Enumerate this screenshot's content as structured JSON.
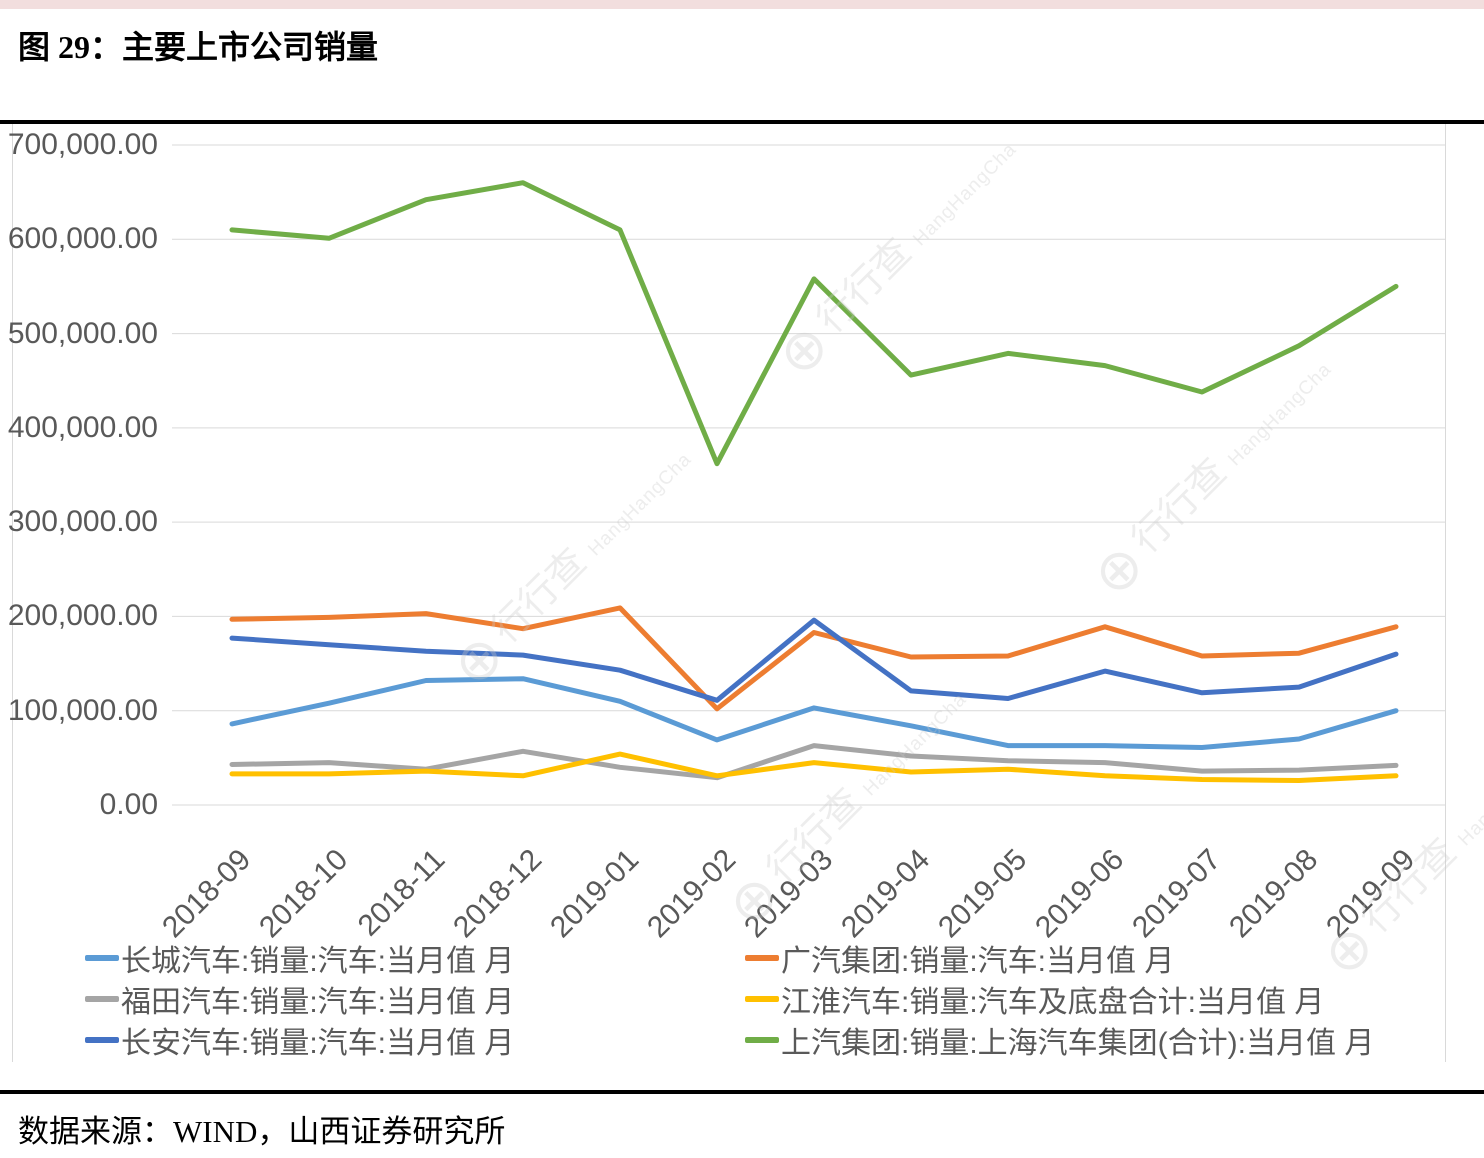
{
  "page": {
    "title": "图 29：主要上市公司销量",
    "source": "数据来源：WIND，山西证券研究所",
    "watermark": {
      "text": "行行查",
      "sub": "HangHangCha"
    }
  },
  "chart_data": {
    "type": "line",
    "title": "主要上市公司销量",
    "xlabel": "",
    "ylabel": "",
    "ylim": [
      0,
      700000
    ],
    "y_tick_step": 100000,
    "y_tick_labels": [
      "700,000.00",
      "600,000.00",
      "500,000.00",
      "400,000.00",
      "300,000.00",
      "200,000.00",
      "100,000.00",
      "0.00"
    ],
    "grid": true,
    "legend_position": "bottom",
    "categories": [
      "2018-09",
      "2018-10",
      "2018-11",
      "2018-12",
      "2019-01",
      "2019-02",
      "2019-03",
      "2019-04",
      "2019-05",
      "2019-06",
      "2019-07",
      "2019-08",
      "2019-09"
    ],
    "series": [
      {
        "name": "长城汽车:销量:汽车:当月值 月",
        "color": "#5B9BD5",
        "values": [
          86000,
          108000,
          132000,
          134000,
          110000,
          69000,
          103000,
          84000,
          63000,
          63000,
          61000,
          70000,
          100000
        ]
      },
      {
        "name": "广汽集团:销量:汽车:当月值 月",
        "color": "#ED7D31",
        "values": [
          197000,
          199000,
          203000,
          187000,
          209000,
          102000,
          183000,
          157000,
          158000,
          189000,
          158000,
          161000,
          189000
        ]
      },
      {
        "name": "福田汽车:销量:汽车:当月值 月",
        "color": "#A5A5A5",
        "values": [
          43000,
          45000,
          38000,
          57000,
          40000,
          29000,
          63000,
          52000,
          47000,
          45000,
          36000,
          37000,
          42000
        ]
      },
      {
        "name": "江淮汽车:销量:汽车及底盘合计:当月值 月",
        "color": "#FFC000",
        "values": [
          33000,
          33000,
          36000,
          31000,
          54000,
          31000,
          45000,
          35000,
          38000,
          31000,
          27000,
          26000,
          31000
        ]
      },
      {
        "name": "长安汽车:销量:汽车:当月值 月",
        "color": "#4472C4",
        "values": [
          177000,
          170000,
          163000,
          159000,
          143000,
          111000,
          196000,
          121000,
          113000,
          142000,
          119000,
          125000,
          160000
        ]
      },
      {
        "name": "上汽集团:销量:上海汽车集团(合计):当月值 月",
        "color": "#70AD47",
        "values": [
          610000,
          601000,
          642000,
          660000,
          610000,
          362000,
          558000,
          456000,
          479000,
          466000,
          438000,
          487000,
          550000
        ]
      }
    ],
    "legend_columns": [
      [
        0,
        2,
        4
      ],
      [
        1,
        3,
        5
      ]
    ]
  }
}
